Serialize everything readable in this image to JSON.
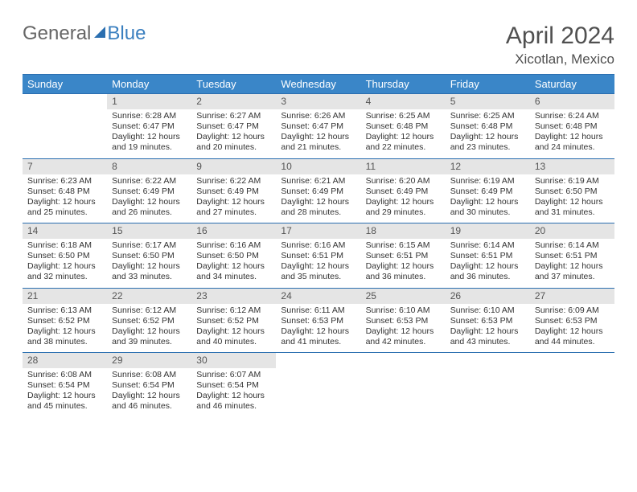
{
  "brand": {
    "part1": "General",
    "part2": "Blue"
  },
  "title": {
    "month": "April 2024",
    "location": "Xicotlan, Mexico"
  },
  "colors": {
    "header_bg": "#3a86c8",
    "header_border": "#2b6fb0",
    "daynum_bg": "#e5e5e5",
    "text": "#333333",
    "brand_gray": "#666666",
    "brand_blue": "#3a7fbf"
  },
  "weekdays": [
    "Sunday",
    "Monday",
    "Tuesday",
    "Wednesday",
    "Thursday",
    "Friday",
    "Saturday"
  ],
  "weeks": [
    [
      null,
      {
        "n": "1",
        "sr": "6:28 AM",
        "ss": "6:47 PM",
        "dl": "12 hours and 19 minutes."
      },
      {
        "n": "2",
        "sr": "6:27 AM",
        "ss": "6:47 PM",
        "dl": "12 hours and 20 minutes."
      },
      {
        "n": "3",
        "sr": "6:26 AM",
        "ss": "6:47 PM",
        "dl": "12 hours and 21 minutes."
      },
      {
        "n": "4",
        "sr": "6:25 AM",
        "ss": "6:48 PM",
        "dl": "12 hours and 22 minutes."
      },
      {
        "n": "5",
        "sr": "6:25 AM",
        "ss": "6:48 PM",
        "dl": "12 hours and 23 minutes."
      },
      {
        "n": "6",
        "sr": "6:24 AM",
        "ss": "6:48 PM",
        "dl": "12 hours and 24 minutes."
      }
    ],
    [
      {
        "n": "7",
        "sr": "6:23 AM",
        "ss": "6:48 PM",
        "dl": "12 hours and 25 minutes."
      },
      {
        "n": "8",
        "sr": "6:22 AM",
        "ss": "6:49 PM",
        "dl": "12 hours and 26 minutes."
      },
      {
        "n": "9",
        "sr": "6:22 AM",
        "ss": "6:49 PM",
        "dl": "12 hours and 27 minutes."
      },
      {
        "n": "10",
        "sr": "6:21 AM",
        "ss": "6:49 PM",
        "dl": "12 hours and 28 minutes."
      },
      {
        "n": "11",
        "sr": "6:20 AM",
        "ss": "6:49 PM",
        "dl": "12 hours and 29 minutes."
      },
      {
        "n": "12",
        "sr": "6:19 AM",
        "ss": "6:49 PM",
        "dl": "12 hours and 30 minutes."
      },
      {
        "n": "13",
        "sr": "6:19 AM",
        "ss": "6:50 PM",
        "dl": "12 hours and 31 minutes."
      }
    ],
    [
      {
        "n": "14",
        "sr": "6:18 AM",
        "ss": "6:50 PM",
        "dl": "12 hours and 32 minutes."
      },
      {
        "n": "15",
        "sr": "6:17 AM",
        "ss": "6:50 PM",
        "dl": "12 hours and 33 minutes."
      },
      {
        "n": "16",
        "sr": "6:16 AM",
        "ss": "6:50 PM",
        "dl": "12 hours and 34 minutes."
      },
      {
        "n": "17",
        "sr": "6:16 AM",
        "ss": "6:51 PM",
        "dl": "12 hours and 35 minutes."
      },
      {
        "n": "18",
        "sr": "6:15 AM",
        "ss": "6:51 PM",
        "dl": "12 hours and 36 minutes."
      },
      {
        "n": "19",
        "sr": "6:14 AM",
        "ss": "6:51 PM",
        "dl": "12 hours and 36 minutes."
      },
      {
        "n": "20",
        "sr": "6:14 AM",
        "ss": "6:51 PM",
        "dl": "12 hours and 37 minutes."
      }
    ],
    [
      {
        "n": "21",
        "sr": "6:13 AM",
        "ss": "6:52 PM",
        "dl": "12 hours and 38 minutes."
      },
      {
        "n": "22",
        "sr": "6:12 AM",
        "ss": "6:52 PM",
        "dl": "12 hours and 39 minutes."
      },
      {
        "n": "23",
        "sr": "6:12 AM",
        "ss": "6:52 PM",
        "dl": "12 hours and 40 minutes."
      },
      {
        "n": "24",
        "sr": "6:11 AM",
        "ss": "6:53 PM",
        "dl": "12 hours and 41 minutes."
      },
      {
        "n": "25",
        "sr": "6:10 AM",
        "ss": "6:53 PM",
        "dl": "12 hours and 42 minutes."
      },
      {
        "n": "26",
        "sr": "6:10 AM",
        "ss": "6:53 PM",
        "dl": "12 hours and 43 minutes."
      },
      {
        "n": "27",
        "sr": "6:09 AM",
        "ss": "6:53 PM",
        "dl": "12 hours and 44 minutes."
      }
    ],
    [
      {
        "n": "28",
        "sr": "6:08 AM",
        "ss": "6:54 PM",
        "dl": "12 hours and 45 minutes."
      },
      {
        "n": "29",
        "sr": "6:08 AM",
        "ss": "6:54 PM",
        "dl": "12 hours and 46 minutes."
      },
      {
        "n": "30",
        "sr": "6:07 AM",
        "ss": "6:54 PM",
        "dl": "12 hours and 46 minutes."
      },
      null,
      null,
      null,
      null
    ]
  ],
  "labels": {
    "sunrise": "Sunrise:",
    "sunset": "Sunset:",
    "daylight": "Daylight:"
  }
}
